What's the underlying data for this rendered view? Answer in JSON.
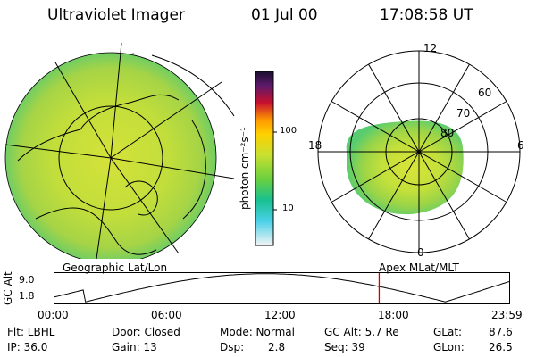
{
  "header": {
    "title": "Ultraviolet Imager",
    "date": "01 Jul 00",
    "time": "17:08:58 UT"
  },
  "colors": {
    "aurora_main": "#a9d640",
    "aurora_mid": "#c6e23a",
    "aurora_low": "#4fd07a",
    "time_marker": "#d40000",
    "land_outline": "#000000"
  },
  "geo_panel": {
    "label": "Geographic Lat/Lon"
  },
  "mag_panel": {
    "label": "Apex MLat/MLT",
    "mlt_labels": [
      "12",
      "18",
      "6",
      "0"
    ],
    "mlat_labels": [
      "60",
      "70",
      "80"
    ]
  },
  "colorbar": {
    "unit_label": "photon cm⁻²s⁻¹",
    "ticks": [
      "100",
      "10"
    ]
  },
  "altitude_plot": {
    "axis_label": "GC Alt",
    "y_ticks": [
      "9.0",
      "1.8"
    ],
    "x_ticks": [
      "00:00",
      "06:00",
      "12:00",
      "18:00",
      "23:59"
    ],
    "marker_time_h": 17.15
  },
  "status": {
    "flt": "Flt: LBHL",
    "ip": "IP: 36.0",
    "door": "Door: Closed",
    "gain": "Gain: 13",
    "mode": "Mode: Normal",
    "dsp_label": "Dsp:",
    "dsp_value": "2.8",
    "gcalt": "GC Alt: 5.7 Re",
    "seq": "Seq: 39",
    "glat_label": "GLat:",
    "glat_value": "87.6",
    "glon_label": "GLon:",
    "glon_value": "26.5"
  }
}
